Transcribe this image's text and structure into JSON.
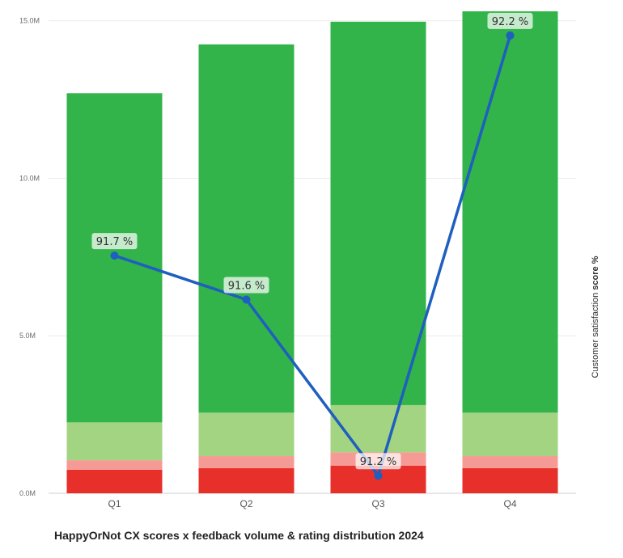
{
  "chart_data": {
    "type": "bar",
    "stacked": true,
    "title": "HappyOrNot CX scores x feedback volume & rating distribution 2024",
    "categories": [
      "Q1",
      "Q2",
      "Q3",
      "Q4"
    ],
    "y_axis": {
      "ticks": [
        {
          "value": 0,
          "label": "0.0M"
        },
        {
          "value": 5,
          "label": "5.0M"
        },
        {
          "value": 10,
          "label": "10.0M"
        },
        {
          "value": 15,
          "label": "15.0M"
        }
      ],
      "ylim": [
        0,
        15.3
      ],
      "grid": true
    },
    "right_axis": {
      "label_prefix": "Customer satisfaction ",
      "label_bold": "score %",
      "ylim": [
        91.16,
        92.255
      ]
    },
    "series": [
      {
        "key": "very_negative",
        "values": [
          0.75,
          0.8,
          0.88,
          0.8
        ],
        "color": "#e8302a"
      },
      {
        "key": "negative",
        "values": [
          0.3,
          0.38,
          0.42,
          0.38
        ],
        "color": "#f59a95"
      },
      {
        "key": "positive",
        "values": [
          1.2,
          1.38,
          1.5,
          1.38
        ],
        "color": "#a3d481"
      },
      {
        "key": "very_positive",
        "values": [
          10.45,
          11.69,
          12.17,
          12.74
        ],
        "color": "#32b44a"
      }
    ],
    "line_series": {
      "values": [
        91.7,
        91.6,
        91.2,
        92.2
      ],
      "labels": [
        "91.7 %",
        "91.6 %",
        "91.2 %",
        "92.2 %"
      ],
      "color": "#1e5fbf"
    }
  }
}
